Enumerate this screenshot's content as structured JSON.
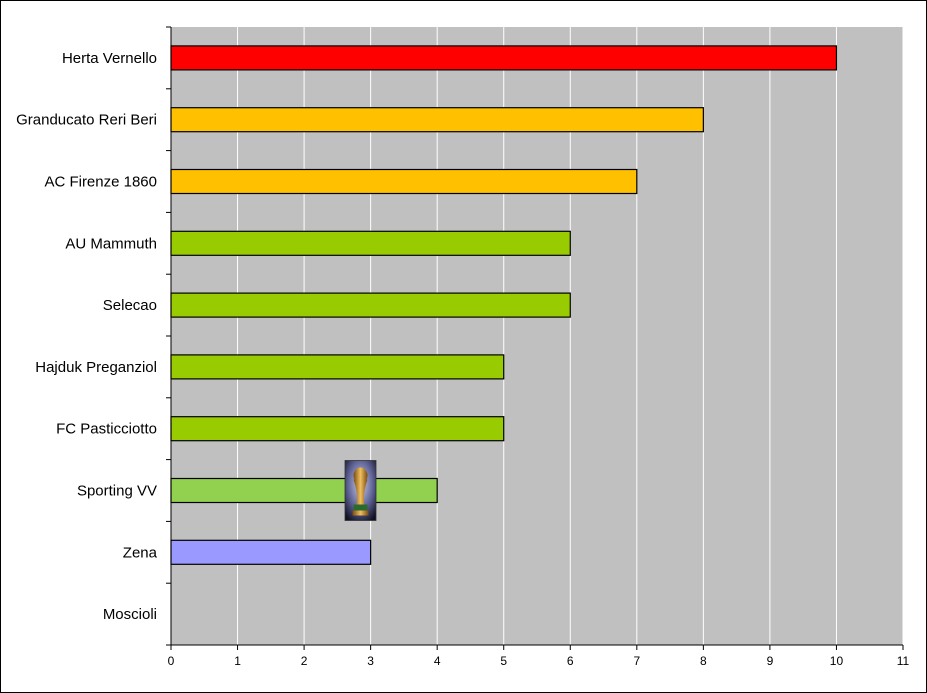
{
  "chart_data": {
    "type": "bar",
    "orientation": "horizontal",
    "categories": [
      "Herta Vernello",
      "Granducato Reri Beri",
      "AC Firenze 1860",
      "AU Mammuth",
      "Selecao",
      "Hajduk Preganziol",
      "FC Pasticciotto",
      "Sporting VV",
      "Zena",
      "Moscioli"
    ],
    "values": [
      10,
      8,
      7,
      6,
      6,
      5,
      5,
      4,
      3,
      0
    ],
    "bar_colors": [
      "#ff0000",
      "#ffc000",
      "#ffc000",
      "#99cc00",
      "#99cc00",
      "#99cc00",
      "#99cc00",
      "#92d050",
      "#9999ff",
      "#99cc00"
    ],
    "xlim": [
      0,
      11
    ],
    "x_ticks": [
      "0",
      "1",
      "2",
      "3",
      "4",
      "5",
      "6",
      "7",
      "8",
      "9",
      "10",
      "11"
    ],
    "grid": "vertical",
    "plot_background": "#c0c0c0",
    "gridline_color": "#ffffff",
    "trophy_on_category": "Sporting VV",
    "trophy_icon": "trophy-icon"
  }
}
